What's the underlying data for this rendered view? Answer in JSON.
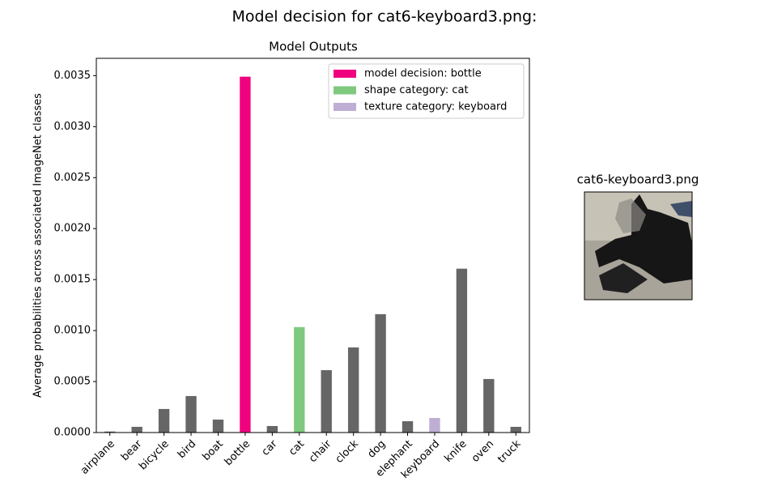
{
  "chart_data": {
    "type": "bar",
    "suptitle": "Model decision for cat6-keyboard3.png:",
    "title": "Model Outputs",
    "y_label": "Average probabilities across associated ImageNet classes",
    "categories": [
      "airplane",
      "bear",
      "bicycle",
      "bird",
      "boat",
      "bottle",
      "car",
      "cat",
      "chair",
      "clock",
      "dog",
      "elephant",
      "keyboard",
      "knife",
      "oven",
      "truck"
    ],
    "values": [
      1e-05,
      5.6e-05,
      0.000231,
      0.000358,
      0.000127,
      0.00349,
      6.4e-05,
      0.001034,
      0.000612,
      0.000835,
      0.001161,
      0.000111,
      0.000143,
      0.001607,
      0.000525,
      5.6e-05
    ],
    "colors": [
      "#666666",
      "#666666",
      "#666666",
      "#666666",
      "#666666",
      "#f0027f",
      "#666666",
      "#7fc97f",
      "#666666",
      "#666666",
      "#666666",
      "#666666",
      "#beaed4",
      "#666666",
      "#666666",
      "#666666"
    ],
    "legend": [
      {
        "name": "model decision: bottle",
        "color": "#f0027f"
      },
      {
        "name": "shape category: cat",
        "color": "#7fc97f"
      },
      {
        "name": "texture category: keyboard",
        "color": "#beaed4"
      }
    ],
    "legend_position": "upper right",
    "ylim": [
      0,
      0.00367
    ],
    "yticks": [
      {
        "value": 0,
        "label": "0.0000"
      },
      {
        "value": 0.0005,
        "label": "0.0005"
      },
      {
        "value": 0.001,
        "label": "0.0010"
      },
      {
        "value": 0.0015,
        "label": "0.0015"
      },
      {
        "value": 0.002,
        "label": "0.0020"
      },
      {
        "value": 0.0025,
        "label": "0.0025"
      },
      {
        "value": 0.003,
        "label": "0.0030"
      },
      {
        "value": 0.0035,
        "label": "0.0035"
      }
    ],
    "image_title": "cat6-keyboard3.png"
  }
}
